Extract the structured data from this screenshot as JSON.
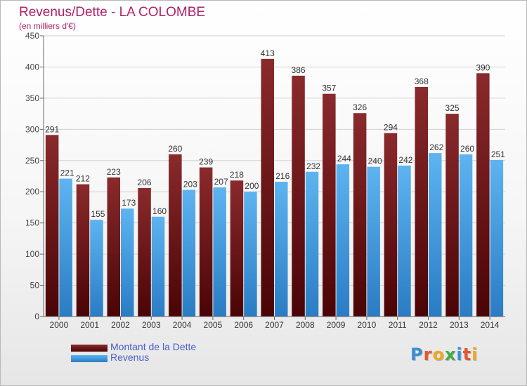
{
  "chart_data": {
    "type": "bar",
    "title": "Revenus/Dette - LA COLOMBE",
    "subtitle": "(en milliers d'€)",
    "categories": [
      "2000",
      "2001",
      "2002",
      "2003",
      "2004",
      "2005",
      "2006",
      "2007",
      "2008",
      "2009",
      "2010",
      "2011",
      "2012",
      "2013",
      "2014"
    ],
    "series": [
      {
        "name": "Montant de la Dette",
        "values": [
          291,
          212,
          223,
          206,
          260,
          239,
          218,
          413,
          386,
          357,
          326,
          294,
          368,
          325,
          390
        ],
        "color": "#7a1518"
      },
      {
        "name": "Revenus",
        "values": [
          221,
          155,
          173,
          160,
          203,
          207,
          200,
          216,
          232,
          244,
          240,
          242,
          262,
          260,
          251
        ],
        "color": "#3a9ae2"
      }
    ],
    "ylim": [
      0,
      450
    ],
    "yticks": [
      0,
      50,
      100,
      150,
      200,
      250,
      300,
      350,
      400,
      450
    ],
    "grid": true,
    "legend_position": "bottom-left",
    "data_labels": true
  },
  "logo": {
    "text": "Proxiti",
    "letter_colors": [
      "#3a8fd8",
      "#e8552a",
      "#f0a820",
      "#44aa44",
      "#3a8fd8",
      "#e8552a",
      "#f0a820"
    ]
  }
}
